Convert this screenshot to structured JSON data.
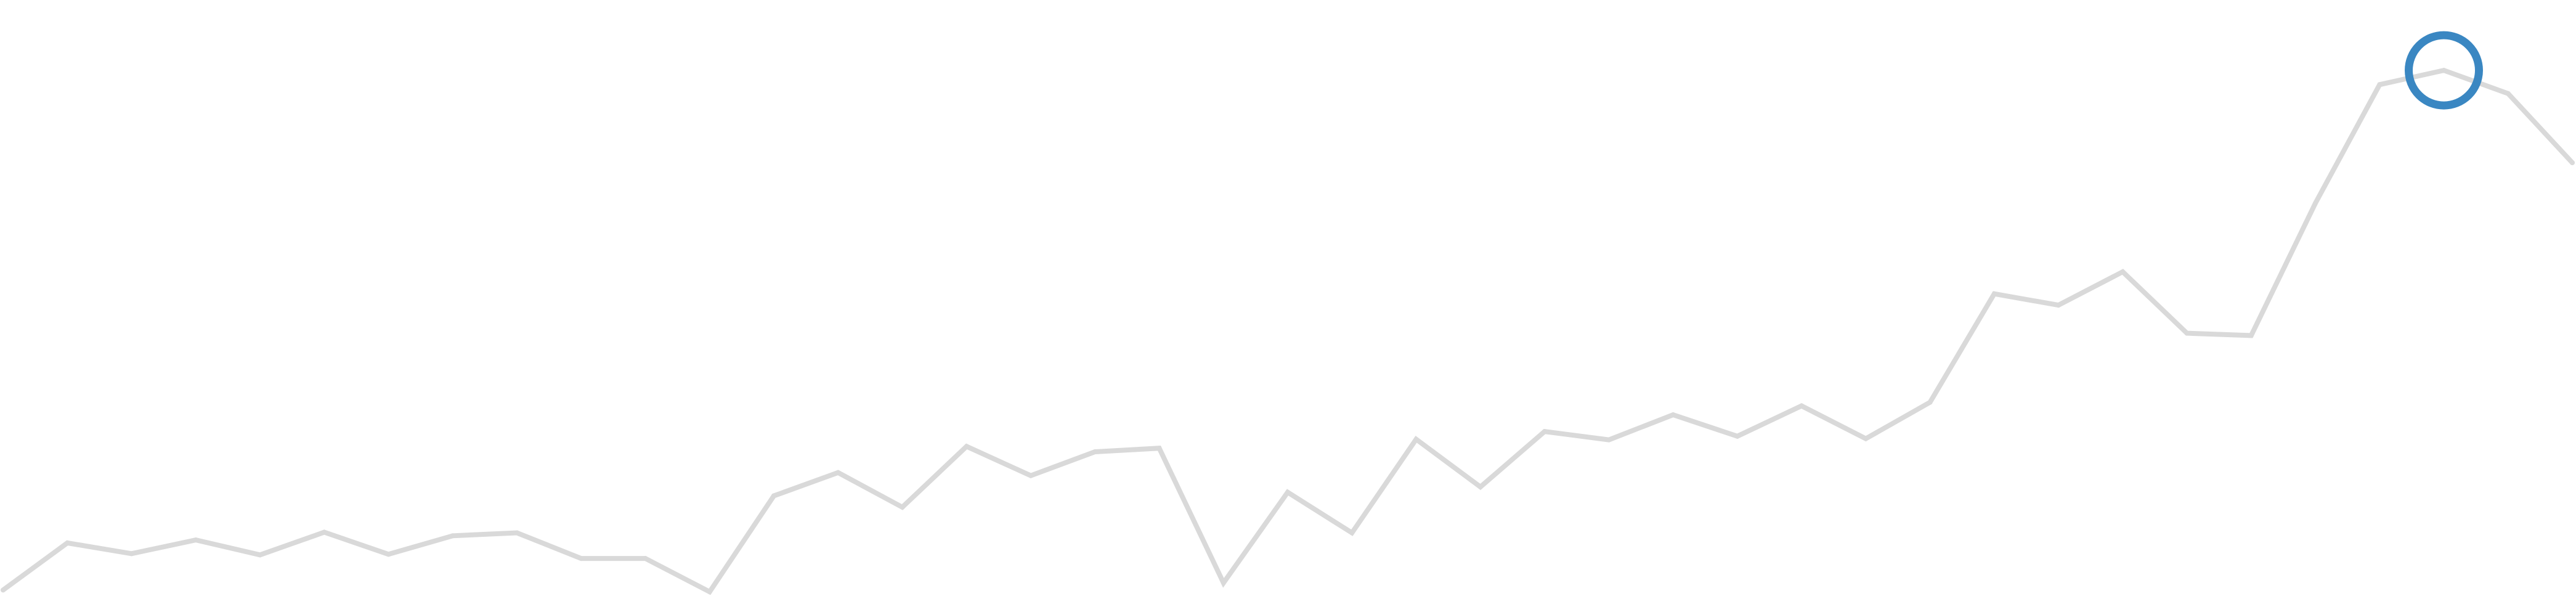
{
  "chart_data": {
    "type": "line",
    "title": "",
    "xlabel": "",
    "ylabel": "",
    "grid": false,
    "legend": "none",
    "x": [
      0,
      1,
      2,
      3,
      4,
      5,
      6,
      7,
      8,
      9,
      10,
      11,
      12,
      13,
      14,
      15,
      16,
      17,
      18,
      19,
      20,
      21,
      22,
      23,
      24,
      25,
      26,
      27,
      28,
      29,
      30,
      31,
      32,
      33,
      34,
      35,
      36,
      37,
      38,
      39,
      40
    ],
    "ylim": [
      0,
      1
    ],
    "xlim": [
      0,
      40
    ],
    "series": [
      {
        "values": [
          0.01,
          0.089,
          0.071,
          0.094,
          0.069,
          0.107,
          0.07,
          0.101,
          0.106,
          0.063,
          0.063,
          0.007,
          0.168,
          0.207,
          0.149,
          0.251,
          0.202,
          0.242,
          0.248,
          0.022,
          0.174,
          0.106,
          0.263,
          0.183,
          0.276,
          0.262,
          0.304,
          0.268,
          0.319,
          0.264,
          0.325,
          0.507,
          0.488,
          0.544,
          0.441,
          0.437,
          0.659,
          0.858,
          0.882,
          0.843,
          0.727
        ],
        "color": "#d9d9d9"
      }
    ],
    "highlight": {
      "index": 38,
      "color": "#3a87c2"
    }
  }
}
